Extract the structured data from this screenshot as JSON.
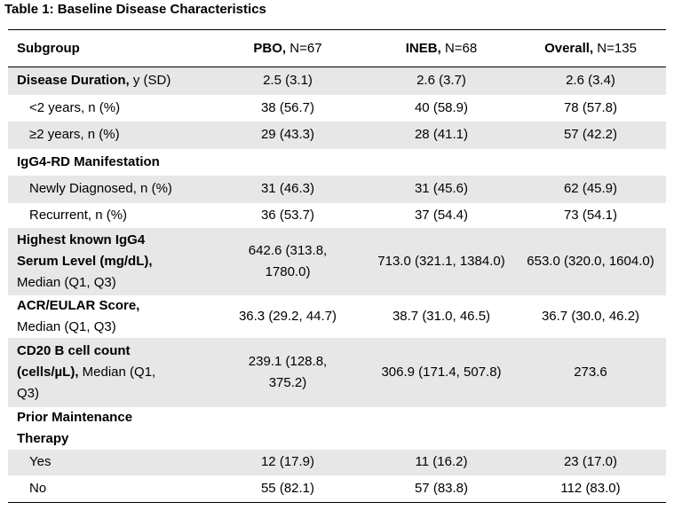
{
  "caption": "Table 1: Baseline Disease Characteristics",
  "header": {
    "subgroup": "Subgroup",
    "pbo_bold": "PBO,",
    "pbo_n": " N=67",
    "ineb_bold": "INEB,",
    "ineb_n": " N=68",
    "overall_bold": "Overall,",
    "overall_n": " N=135"
  },
  "rows": [
    {
      "label_bold": "Disease Duration,",
      "label": " y (SD)",
      "pbo": "2.5 (3.1)",
      "ineb": "2.6 (3.7)",
      "overall": "2.6 (3.4)"
    },
    {
      "label": "<2 years, n (%)",
      "pbo": "38 (56.7)",
      "ineb": "40 (58.9)",
      "overall": "78 (57.8)"
    },
    {
      "label": "≥2 years, n (%)",
      "pbo": "29 (43.3)",
      "ineb": "28 (41.1)",
      "overall": "57 (42.2)"
    },
    {
      "label_bold": "IgG4-RD Manifestation"
    },
    {
      "label": "Newly Diagnosed, n (%)",
      "pbo": "31 (46.3)",
      "ineb": "31 (45.6)",
      "overall": "62 (45.9)"
    },
    {
      "label": "Recurrent, n (%)",
      "pbo": "36 (53.7)",
      "ineb": "37 (54.4)",
      "overall": "73 (54.1)"
    },
    {
      "label_bold1": "Highest known IgG4",
      "label_bold2": "Serum Level (mg/dL),",
      "label": "Median (Q1, Q3)",
      "pbo1": "642.6 (313.8,",
      "pbo2": "1780.0)",
      "ineb": "713.0 (321.1, 1384.0)",
      "overall": "653.0 (320.0, 1604.0)"
    },
    {
      "label_bold": "ACR/EULAR Score,",
      "label": "Median (Q1, Q3)",
      "pbo": "36.3 (29.2, 44.7)",
      "ineb": "38.7 (31.0, 46.5)",
      "overall": "36.7 (30.0, 46.2)"
    },
    {
      "label_bold1": "CD20 B cell count",
      "label_bold2": "(cells/µL),",
      "label_tail": " Median (Q1,",
      "label3": "Q3)",
      "pbo1": "239.1 (128.8,",
      "pbo2": "375.2)",
      "ineb": "306.9 (171.4, 507.8)",
      "overall": "273.6"
    },
    {
      "label_bold1": "Prior Maintenance",
      "label_bold2": "Therapy"
    },
    {
      "label": "Yes",
      "pbo": "12 (17.9)",
      "ineb": "11 (16.2)",
      "overall": "23 (17.0)"
    },
    {
      "label": "No",
      "pbo": "55 (82.1)",
      "ineb": "57 (83.8)",
      "overall": "112 (83.0)"
    }
  ]
}
